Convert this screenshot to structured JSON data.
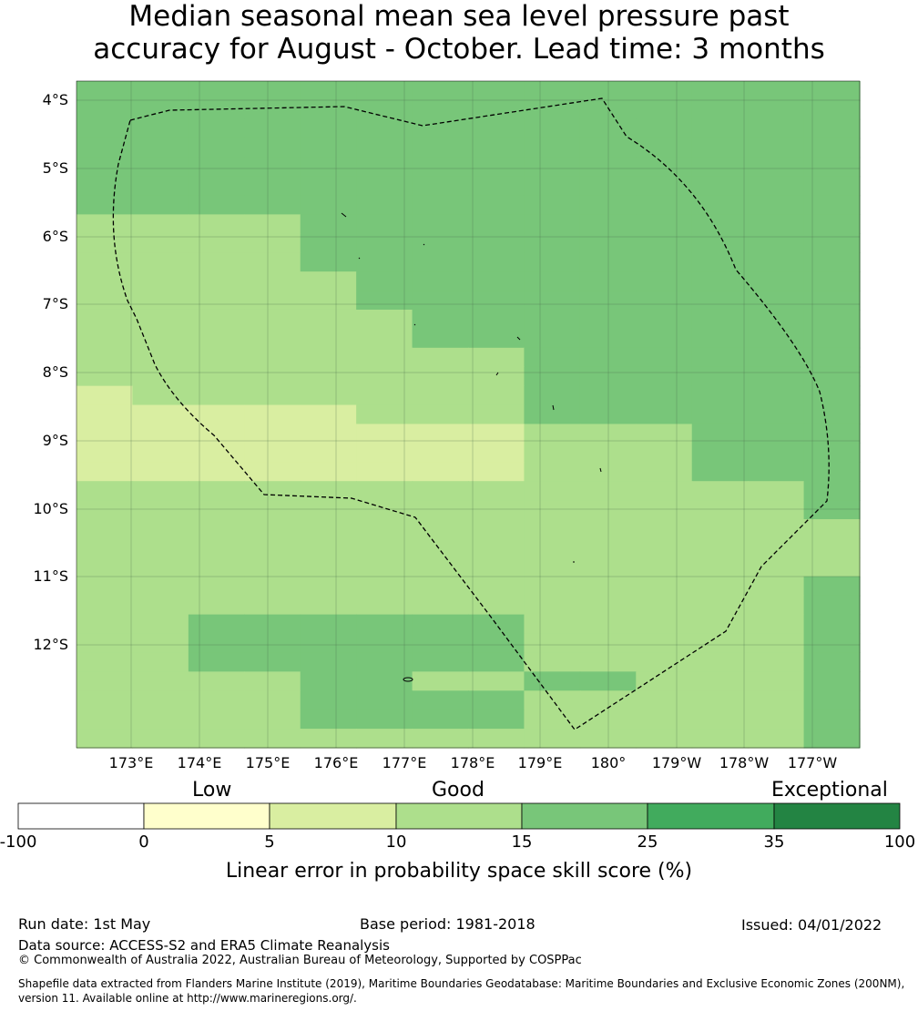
{
  "title": {
    "line1": "Median seasonal mean sea level pressure past",
    "line2": "accuracy for August - October. Lead time: 3 months"
  },
  "map": {
    "lat_labels": [
      "4°S",
      "5°S",
      "6°S",
      "7°S",
      "8°S",
      "9°S",
      "10°S",
      "11°S",
      "12°S"
    ],
    "lon_labels": [
      "173°E",
      "174°E",
      "175°E",
      "176°E",
      "177°E",
      "178°E",
      "179°E",
      "180°",
      "179°W",
      "178°W",
      "177°W"
    ],
    "boundary_style": "dashed black line (EEZ)",
    "legend_colors": {
      "5-10": "#d9eea1",
      "10-15": "#addf8c",
      "15-25": "#78c679",
      "background_hatch": "#fafac8"
    },
    "grid": [
      "33333333333333",
      "33333333333333",
      "33333333333333",
      "33333333333333",
      "33333333333333",
      "33333333333333",
      "33333333333333",
      "22223333333333",
      "22223333333333",
      "22223333333333",
      "22222333333333",
      "22222333333333",
      "22222233333333",
      "22222233333333",
      "22222222333333",
      "22222222333333",
      "12222222333333",
      "11111222333333",
      "11111111222333",
      "11111111222333",
      "11111111222333",
      "22222222222223",
      "22222222222223",
      "22222222222222",
      "22222222222222",
      "22222222222222",
      "22222222222223",
      "22222222222223",
      "22333333222223",
      "22333333222223",
      "22333333222223",
      "22223322332223",
      "22223333222223",
      "22223333222223",
      "22222222222223"
    ],
    "grid_codes": {
      "1": "5 - 10",
      "2": "10 - 15",
      "3": "15 - 25"
    },
    "grid_overrides": [
      {
        "row": 16,
        "col": 0,
        "code": 1
      },
      {
        "row": 17,
        "col": 0,
        "code": 1
      },
      {
        "row": 18,
        "col": 0,
        "code": 1
      },
      {
        "row": 18,
        "col": 1,
        "code": 1
      },
      {
        "row": 18,
        "col": 2,
        "code": 1
      },
      {
        "row": 18,
        "col": 3,
        "code": 1
      },
      {
        "row": 18,
        "col": 4,
        "code": 1
      }
    ]
  },
  "colorbar": {
    "categories": [
      "Low",
      "Good",
      "Exceptional"
    ],
    "ticks": [
      "-100",
      "0",
      "5",
      "10",
      "15",
      "25",
      "35",
      "100"
    ],
    "colors": [
      "#ffffff",
      "#ffffcc",
      "#d9eea1",
      "#addf8c",
      "#78c679",
      "#41ab5d",
      "#238443"
    ],
    "label": "Linear error in probability space skill score (%)"
  },
  "footer": {
    "run_date": "Run date: 1st May",
    "base_period": "Base period: 1981-2018",
    "issued": "Issued: 04/01/2022",
    "data_source": "Data source: ACCESS-S2 and ERA5 Climate Reanalysis",
    "copyright": "© Commonwealth of Australia 2022, Australian Bureau of Meteorology, Supported by COSPPac",
    "shapefile_line1": "Shapefile data extracted from Flanders Marine Institute (2019), Maritime Boundaries Geodatabase: Maritime Boundaries and Exclusive Economic Zones (200NM),",
    "shapefile_line2": "version 11. Available online at http://www.marineregions.org/."
  }
}
